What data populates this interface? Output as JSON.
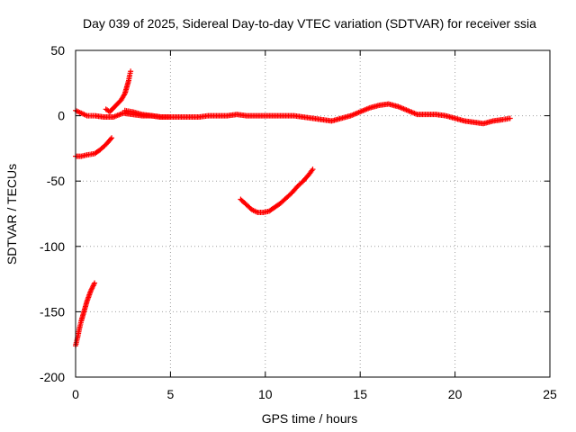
{
  "chart_data": {
    "type": "scatter",
    "title": "Day 039 of 2025, Sidereal Day-to-day VTEC variation (SDTVAR) for receiver ssia",
    "xlabel": "GPS time / hours",
    "ylabel": "SDTVAR / TECUs",
    "xlim": [
      0,
      25
    ],
    "ylim": [
      -200,
      50
    ],
    "xticks": [
      "0",
      "5",
      "10",
      "15",
      "20",
      "25"
    ],
    "yticks": [
      "50",
      "0",
      "-50",
      "-100",
      "-150",
      "-200"
    ],
    "grid": true,
    "marker": "plus",
    "color": "#ff0000",
    "series": [
      {
        "name": "main-arc",
        "x": [
          0.0,
          0.3,
          0.6,
          1.0,
          1.5,
          2.0,
          2.5,
          3.0,
          3.5,
          4.0,
          4.5,
          5.0,
          5.5,
          6.0,
          6.5,
          7.0,
          7.5,
          8.0,
          8.5,
          9.0,
          9.5,
          10.0,
          10.5,
          11.0,
          11.5,
          12.0,
          12.5,
          13.0,
          13.5,
          14.0,
          14.5,
          15.0,
          15.5,
          16.0,
          16.5,
          17.0,
          17.5,
          18.0,
          18.5,
          19.0,
          19.5,
          20.0,
          20.5,
          21.0,
          21.5,
          22.0,
          22.5,
          22.9
        ],
        "y": [
          4,
          2,
          0,
          0,
          -1,
          -1,
          2,
          1,
          0,
          0,
          -1,
          -1,
          -1,
          -1,
          -1,
          0,
          0,
          0,
          1,
          0,
          0,
          0,
          0,
          0,
          0,
          -1,
          -2,
          -3,
          -4,
          -2,
          0,
          3,
          6,
          8,
          9,
          7,
          4,
          1,
          1,
          1,
          0,
          -2,
          -4,
          -5,
          -6,
          -4,
          -3,
          -2
        ]
      },
      {
        "name": "rising-arc",
        "x": [
          1.6,
          1.8,
          2.0,
          2.2,
          2.4,
          2.6,
          2.7,
          2.8,
          2.85,
          2.9
        ],
        "y": [
          5,
          3,
          6,
          9,
          12,
          17,
          22,
          27,
          31,
          34
        ]
      },
      {
        "name": "dip-arc",
        "x": [
          2.6,
          3.0,
          3.5,
          4.0,
          4.5,
          5.0
        ],
        "y": [
          4,
          3,
          1,
          0,
          -1,
          -1
        ]
      },
      {
        "name": "early-negative-arc",
        "x": [
          0.0,
          0.3,
          0.6,
          1.0,
          1.3,
          1.6,
          1.9
        ],
        "y": [
          -31,
          -31,
          -30,
          -29,
          -26,
          -22,
          -17
        ]
      },
      {
        "name": "u-shaped-arc",
        "x": [
          8.7,
          9.0,
          9.3,
          9.6,
          9.9,
          10.2,
          10.5,
          10.8,
          11.1,
          11.4,
          11.7,
          12.0,
          12.3,
          12.5
        ],
        "y": [
          -64,
          -68,
          -72,
          -74,
          -74,
          -73,
          -70,
          -67,
          -63,
          -59,
          -54,
          -50,
          -45,
          -41
        ]
      },
      {
        "name": "steep-negative-arc",
        "x": [
          0.0,
          0.1,
          0.2,
          0.3,
          0.4,
          0.5,
          0.6,
          0.7,
          0.8,
          0.9,
          1.0
        ],
        "y": [
          -176,
          -170,
          -163,
          -157,
          -152,
          -147,
          -142,
          -138,
          -134,
          -131,
          -128
        ]
      }
    ]
  }
}
